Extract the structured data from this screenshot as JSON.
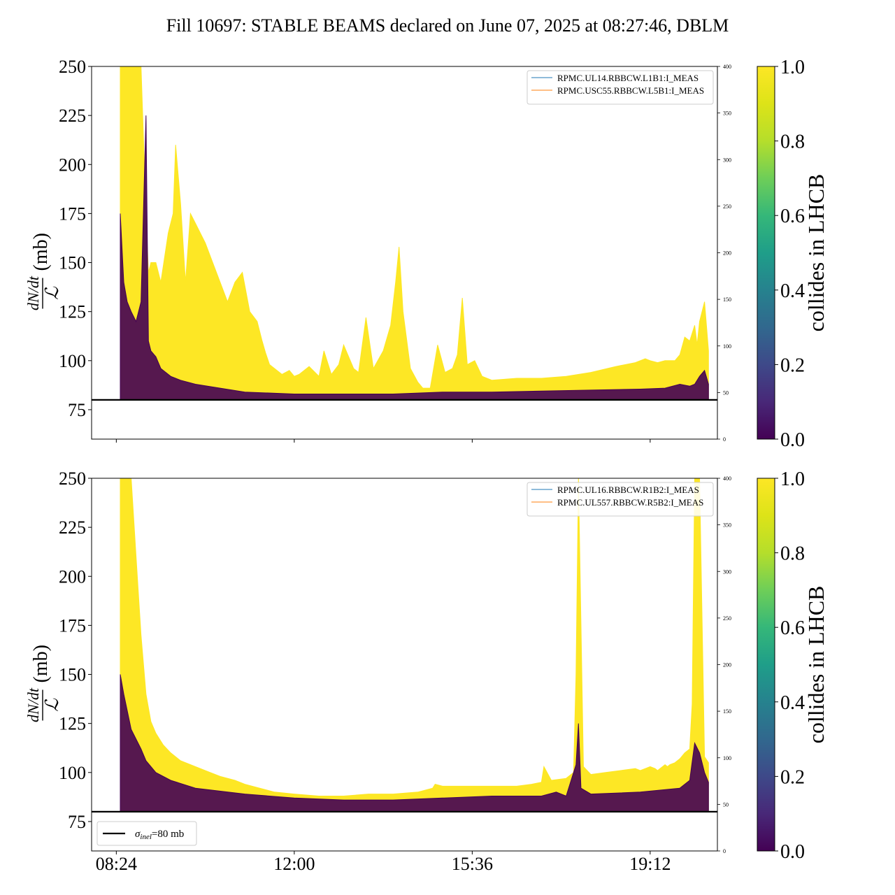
{
  "figure": {
    "title": "Fill 10697: STABLE BEAMS declared on June 07, 2025 at 08:27:46, DBLM"
  },
  "chart_data": [
    {
      "type": "line",
      "panel": "top",
      "ylabel_top": "dN/dt",
      "ylabel_bottom": "ℒ",
      "ylabel_unit": "(mb)",
      "ylim": [
        60,
        250
      ],
      "yticks": [
        75,
        100,
        125,
        150,
        175,
        200,
        225,
        250
      ],
      "secondary_ylim": [
        0,
        400
      ],
      "secondary_yticks": [
        0,
        50,
        100,
        150,
        200,
        250,
        300,
        350,
        400
      ],
      "xticks": [
        "08:24",
        "12:00",
        "15:36",
        "19:12"
      ],
      "xtick_labels_shown": false,
      "x_unit": "hours since 00:00",
      "xlim": [
        7.9,
        20.56
      ],
      "legend": {
        "position": "top-right",
        "entries": [
          {
            "label": "RPMC.UL14.RBBCW.L1B1:I_MEAS",
            "color": "#1f77b4"
          },
          {
            "label": "RPMC.USC55.RBBCW.L5B1:I_MEAS",
            "color": "#ff7f0e"
          }
        ]
      },
      "reference_line": {
        "y": 80,
        "label": "σinel=80 mb",
        "color": "#000000"
      },
      "colorbar": {
        "label": "collides in LHCB",
        "min": 0.0,
        "max": 1.0,
        "ticks": [
          "0.0",
          "0.2",
          "0.4",
          "0.6",
          "0.8",
          "1.0"
        ]
      },
      "series": [
        {
          "name": "collides=1 upper envelope",
          "color": "#fde725",
          "x": [
            8.48,
            8.5,
            8.55,
            8.62,
            8.7,
            8.8,
            8.9,
            9.0,
            9.05,
            9.1,
            9.2,
            9.3,
            9.45,
            9.55,
            9.6,
            9.7,
            9.8,
            9.9,
            10.0,
            10.1,
            10.2,
            10.35,
            10.5,
            10.65,
            10.8,
            10.95,
            11.1,
            11.25,
            11.35,
            11.42,
            11.5,
            11.6,
            11.75,
            11.9,
            12.0,
            12.1,
            12.3,
            12.5,
            12.6,
            12.75,
            12.9,
            13.0,
            13.2,
            13.3,
            13.45,
            13.6,
            13.8,
            13.95,
            14.05,
            14.12,
            14.2,
            14.35,
            14.5,
            14.6,
            14.75,
            14.9,
            15.05,
            15.2,
            15.3,
            15.4,
            15.5,
            15.65,
            15.8,
            16.0,
            16.5,
            17.0,
            17.5,
            18.0,
            18.5,
            18.9,
            19.1,
            19.2,
            19.35,
            19.5,
            19.7,
            19.8,
            19.9,
            20.0,
            20.1,
            20.15,
            20.2,
            20.3,
            20.38
          ],
          "y": [
            250,
            250,
            250,
            250,
            250,
            250,
            250,
            175,
            145,
            150,
            150,
            140,
            165,
            175,
            210,
            180,
            140,
            175,
            170,
            165,
            160,
            150,
            140,
            130,
            140,
            145,
            125,
            120,
            110,
            104,
            98,
            96,
            93,
            95,
            92,
            93,
            97,
            92,
            105,
            93,
            98,
            108,
            96,
            94,
            122,
            96,
            105,
            118,
            140,
            158,
            125,
            96,
            89,
            86,
            86,
            108,
            94,
            96,
            103,
            132,
            98,
            100,
            92,
            90,
            91,
            91,
            92,
            94,
            97,
            99,
            101,
            100,
            99,
            100,
            100,
            103,
            112,
            110,
            118,
            108,
            120,
            130,
            105
          ]
        },
        {
          "name": "collides=0",
          "color": "#440154",
          "x": [
            8.48,
            8.55,
            8.62,
            8.7,
            8.8,
            8.9,
            9.0,
            9.05,
            9.1,
            9.2,
            9.3,
            9.5,
            9.7,
            10.0,
            10.5,
            11.0,
            12.0,
            13.0,
            14.0,
            15.0,
            16.0,
            17.0,
            18.0,
            19.0,
            19.5,
            19.8,
            20.0,
            20.1,
            20.2,
            20.3,
            20.38
          ],
          "y": [
            175,
            140,
            130,
            125,
            120,
            130,
            225,
            110,
            105,
            102,
            96,
            92,
            90,
            88,
            86,
            84,
            83,
            83,
            83,
            84,
            84,
            84.5,
            85,
            85.5,
            86,
            88,
            87,
            88,
            92,
            95,
            88
          ]
        }
      ]
    },
    {
      "type": "line",
      "panel": "bottom",
      "ylabel_top": "dN/dt",
      "ylabel_bottom": "ℒ",
      "ylabel_unit": "(mb)",
      "ylim": [
        60,
        250
      ],
      "yticks": [
        75,
        100,
        125,
        150,
        175,
        200,
        225,
        250
      ],
      "secondary_ylim": [
        0,
        400
      ],
      "secondary_yticks": [
        0,
        50,
        100,
        150,
        200,
        250,
        300,
        350,
        400
      ],
      "xticks": [
        "08:24",
        "12:00",
        "15:36",
        "19:12"
      ],
      "xtick_labels_shown": true,
      "x_unit": "hours since 00:00",
      "xlim": [
        7.9,
        20.56
      ],
      "legend": {
        "position": "top-right",
        "entries": [
          {
            "label": "RPMC.UL16.RBBCW.R1B2:I_MEAS",
            "color": "#1f77b4"
          },
          {
            "label": "RPMC.UL557.RBBCW.R5B2:I_MEAS",
            "color": "#ff7f0e"
          }
        ]
      },
      "legend_ref": {
        "position": "bottom-left",
        "label_sigma": "σ",
        "label_sub": "inel",
        "label_rest": "=80 mb"
      },
      "reference_line": {
        "y": 80,
        "label": "σinel=80 mb",
        "color": "#000000"
      },
      "colorbar": {
        "label": "collides in LHCB",
        "min": 0.0,
        "max": 1.0,
        "ticks": [
          "0.0",
          "0.2",
          "0.4",
          "0.6",
          "0.8",
          "1.0"
        ]
      },
      "series": [
        {
          "name": "collides=1 upper envelope",
          "color": "#fde725",
          "x": [
            8.48,
            8.5,
            8.6,
            8.7,
            8.8,
            8.9,
            9.0,
            9.1,
            9.2,
            9.35,
            9.5,
            9.7,
            9.9,
            10.1,
            10.3,
            10.5,
            10.8,
            11.0,
            11.3,
            11.6,
            12.0,
            12.5,
            13.0,
            13.5,
            14.0,
            14.5,
            14.8,
            14.85,
            15.0,
            15.5,
            16.0,
            16.5,
            16.8,
            17.0,
            17.05,
            17.2,
            17.5,
            17.65,
            17.7,
            17.75,
            17.85,
            18.0,
            18.3,
            18.6,
            18.9,
            19.0,
            19.1,
            19.2,
            19.3,
            19.35,
            19.4,
            19.5,
            19.55,
            19.6,
            19.7,
            19.8,
            19.9,
            20.0,
            20.05,
            20.1,
            20.2,
            20.3,
            20.38
          ],
          "y": [
            250,
            250,
            250,
            250,
            210,
            170,
            140,
            126,
            120,
            114,
            110,
            106,
            104,
            102,
            100,
            98,
            96,
            94,
            92,
            90,
            89,
            88,
            88,
            89,
            89,
            90,
            92,
            94,
            93,
            93,
            93,
            93,
            94,
            95,
            103,
            96,
            97,
            100,
            150,
            250,
            103,
            99,
            100,
            101,
            102,
            101,
            102,
            103,
            102,
            101,
            102,
            104,
            103,
            104,
            105,
            107,
            110,
            112,
            135,
            250,
            250,
            108,
            105
          ]
        },
        {
          "name": "collides=0",
          "color": "#440154",
          "x": [
            8.48,
            8.55,
            8.7,
            8.9,
            9.0,
            9.2,
            9.5,
            10.0,
            11.0,
            12.0,
            13.0,
            14.0,
            15.0,
            16.0,
            17.0,
            17.3,
            17.5,
            17.7,
            17.75,
            17.8,
            18.0,
            19.0,
            19.8,
            20.0,
            20.1,
            20.2,
            20.3,
            20.38
          ],
          "y": [
            150,
            140,
            122,
            112,
            106,
            100,
            96,
            92,
            89,
            87,
            86,
            86,
            87,
            88,
            88,
            90,
            88,
            104,
            125,
            92,
            89,
            90,
            92,
            96,
            115,
            110,
            100,
            95
          ]
        }
      ]
    }
  ]
}
